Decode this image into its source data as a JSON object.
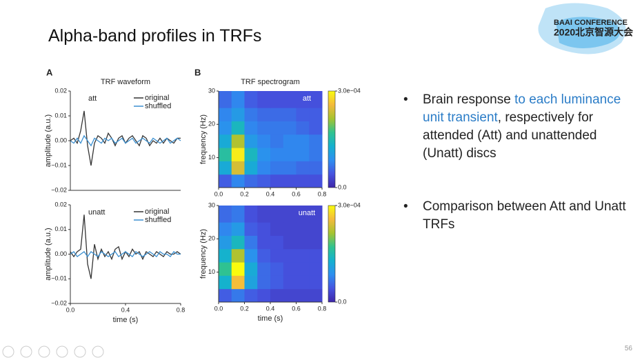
{
  "slide": {
    "title": "Alpha-band profiles in TRFs",
    "logo_top": "BAAI CONFERENCE",
    "logo_bottom": "2020北京智源大会",
    "page": "56",
    "bullets": [
      [
        "Brain response ",
        "to each luminance unit transient",
        ", respectively for attended (Att) and unattended (Unatt)  discs"
      ],
      [
        "Comparison between Att and Unatt TRFs"
      ]
    ]
  },
  "chart_data": [
    {
      "type": "line",
      "panel": "A",
      "title": "TRF waveform",
      "label": "att",
      "ylabel": "amplitude (a.u.)",
      "x": [
        0,
        0.025,
        0.05,
        0.075,
        0.1,
        0.125,
        0.15,
        0.175,
        0.2,
        0.225,
        0.25,
        0.275,
        0.3,
        0.325,
        0.35,
        0.375,
        0.4,
        0.425,
        0.45,
        0.475,
        0.5,
        0.525,
        0.55,
        0.575,
        0.6,
        0.625,
        0.65,
        0.675,
        0.7,
        0.725,
        0.75,
        0.775,
        0.8
      ],
      "xlim": [
        0,
        0.8
      ],
      "ylim": [
        -0.02,
        0.02
      ],
      "yticks": [
        {
          "value": -0.02,
          "label": "−0.02"
        },
        {
          "value": -0.01,
          "label": "−0.01"
        },
        {
          "value": 0,
          "label": "0.00"
        },
        {
          "value": 0.01,
          "label": "0.01"
        },
        {
          "value": 0.02,
          "label": "0.02"
        }
      ],
      "series": [
        {
          "name": "original",
          "color": "#333333",
          "values": [
            0,
            0.001,
            -0.001,
            0.004,
            0.012,
            -0.002,
            -0.01,
            -0.001,
            0.002,
            0.001,
            -0.001,
            0.003,
            0.001,
            -0.002,
            0.001,
            0.002,
            -0.001,
            0.001,
            0.002,
            0,
            -0.002,
            0.002,
            0.001,
            -0.002,
            0,
            -0.001,
            0.001,
            -0.001,
            0.001,
            0,
            -0.001,
            0.001,
            0.001
          ]
        },
        {
          "name": "shuffled",
          "color": "#3a8fd0",
          "values": [
            0,
            -0.001,
            0.001,
            -0.001,
            0.002,
            0,
            -0.002,
            0.001,
            0,
            -0.001,
            0.001,
            0,
            0.001,
            -0.001,
            0,
            0.001,
            -0.001,
            0,
            0.001,
            -0.001,
            0,
            0.001,
            0,
            -0.001,
            0.001,
            0,
            -0.001,
            0,
            0.001,
            -0.001,
            0,
            0.001,
            0
          ]
        }
      ]
    },
    {
      "type": "line",
      "label": "unatt",
      "ylabel": "amplitude (a.u.)",
      "xlabel": "time (s)",
      "x": [
        0,
        0.025,
        0.05,
        0.075,
        0.1,
        0.125,
        0.15,
        0.175,
        0.2,
        0.225,
        0.25,
        0.275,
        0.3,
        0.325,
        0.35,
        0.375,
        0.4,
        0.425,
        0.45,
        0.475,
        0.5,
        0.525,
        0.55,
        0.575,
        0.6,
        0.625,
        0.65,
        0.675,
        0.7,
        0.725,
        0.75,
        0.775,
        0.8
      ],
      "xlim": [
        0,
        0.8
      ],
      "xticks": [
        {
          "value": 0,
          "label": "0.0"
        },
        0.4,
        0.8
      ],
      "ylim": [
        -0.02,
        0.02
      ],
      "yticks": [
        {
          "value": -0.02,
          "label": "−0.02"
        },
        {
          "value": -0.01,
          "label": "−0.01"
        },
        {
          "value": 0,
          "label": "0.00"
        },
        {
          "value": 0.01,
          "label": "0.01"
        },
        {
          "value": 0.02,
          "label": "0.02"
        }
      ],
      "series": [
        {
          "name": "original",
          "color": "#333333",
          "values": [
            0.001,
            -0.001,
            0.001,
            0.002,
            0.016,
            -0.004,
            -0.01,
            0.004,
            -0.002,
            0.002,
            -0.001,
            0.001,
            -0.002,
            0.002,
            0.003,
            -0.002,
            0.001,
            -0.001,
            0.002,
            0,
            0.001,
            -0.002,
            0.001,
            0,
            -0.001,
            0.001,
            0,
            -0.001,
            0.001,
            0,
            0,
            0.001,
            0
          ]
        },
        {
          "name": "shuffled",
          "color": "#3a8fd0",
          "values": [
            0,
            0.001,
            -0.001,
            0,
            0.001,
            -0.001,
            0.001,
            0,
            -0.001,
            0.001,
            0,
            -0.001,
            0,
            0.001,
            -0.001,
            0,
            0.001,
            0,
            -0.001,
            0.001,
            0,
            -0.001,
            0,
            0.001,
            0,
            -0.001,
            0.001,
            0,
            0,
            -0.001,
            0.001,
            0,
            0
          ]
        }
      ]
    },
    {
      "type": "heatmap",
      "panel": "B",
      "title": "TRF spectrogram",
      "label": "att",
      "ylabel": "frequency (Hz)",
      "xbins": [
        0,
        0.1,
        0.2,
        0.3,
        0.4,
        0.5,
        0.6,
        0.7,
        0.8
      ],
      "ybins": [
        1,
        5,
        9,
        13,
        17,
        21,
        25,
        30
      ],
      "xlim": [
        0,
        0.8
      ],
      "ylim": [
        1,
        30
      ],
      "xticks": [
        {
          "value": 0,
          "label": "0.0"
        },
        0.2,
        0.4,
        0.6,
        0.8
      ],
      "yticks": [
        10,
        20,
        30
      ],
      "zlim": [
        0,
        0.0003
      ],
      "zticks": [
        {
          "value": 0.0003,
          "label": "3.0e−04"
        },
        {
          "value": 0,
          "label": "0.0"
        }
      ],
      "colormap": [
        "#3e26a8",
        "#4653e0",
        "#2d8ff0",
        "#14b1cf",
        "#30c38f",
        "#a6c32f",
        "#f4ba3c",
        "#f9fb0e"
      ],
      "values": [
        [
          5e-05,
          8e-05,
          6e-05,
          5e-05,
          4e-05,
          4e-05,
          4e-05,
          4e-05
        ],
        [
          0.00012,
          0.00024,
          0.00012,
          8e-05,
          7e-05,
          7e-05,
          6e-05,
          6e-05
        ],
        [
          0.00016,
          0.00029,
          0.00014,
          9e-05,
          8e-05,
          8e-05,
          8e-05,
          7e-05
        ],
        [
          0.00012,
          0.00022,
          0.0001,
          8e-05,
          7e-05,
          8e-05,
          8e-05,
          7e-05
        ],
        [
          9e-05,
          0.00014,
          8e-05,
          7e-05,
          7e-05,
          7e-05,
          6e-05,
          5e-05
        ],
        [
          8e-05,
          0.0001,
          7e-05,
          6e-05,
          6e-05,
          6e-05,
          5e-05,
          5e-05
        ],
        [
          6e-05,
          8e-05,
          5e-05,
          4e-05,
          4e-05,
          4e-05,
          4e-05,
          4e-05
        ]
      ]
    },
    {
      "type": "heatmap",
      "label": "unatt",
      "ylabel": "frequency (Hz)",
      "xlabel": "time (s)",
      "xbins": [
        0,
        0.1,
        0.2,
        0.3,
        0.4,
        0.5,
        0.6,
        0.7,
        0.8
      ],
      "ybins": [
        1,
        5,
        9,
        13,
        17,
        21,
        25,
        30
      ],
      "xlim": [
        0,
        0.8
      ],
      "ylim": [
        1,
        30
      ],
      "xticks": [
        {
          "value": 0,
          "label": "0.0"
        },
        0.2,
        0.4,
        0.6,
        0.8
      ],
      "yticks": [
        10,
        20,
        30
      ],
      "zlim": [
        0,
        0.0003
      ],
      "zticks": [
        {
          "value": 0.0003,
          "label": "3.0e−04"
        },
        {
          "value": 0,
          "label": "0.0"
        }
      ],
      "colormap": [
        "#3e26a8",
        "#4653e0",
        "#2d8ff0",
        "#14b1cf",
        "#30c38f",
        "#a6c32f",
        "#f4ba3c",
        "#f9fb0e"
      ],
      "values": [
        [
          5e-05,
          7e-05,
          5e-05,
          4e-05,
          3e-05,
          3e-05,
          3e-05,
          3e-05
        ],
        [
          0.00013,
          0.00026,
          0.00011,
          6e-05,
          5e-05,
          4e-05,
          4e-05,
          4e-05
        ],
        [
          0.00017,
          0.0003,
          0.00012,
          6e-05,
          5e-05,
          4e-05,
          4e-05,
          4e-05
        ],
        [
          0.00013,
          0.00022,
          9e-05,
          5e-05,
          4e-05,
          4e-05,
          4e-05,
          4e-05
        ],
        [
          0.0001,
          0.00014,
          7e-05,
          4e-05,
          4e-05,
          3e-05,
          3e-05,
          3e-05
        ],
        [
          8e-05,
          0.0001,
          5e-05,
          4e-05,
          3e-05,
          3e-05,
          3e-05,
          3e-05
        ],
        [
          6e-05,
          7e-05,
          4e-05,
          3e-05,
          3e-05,
          3e-05,
          3e-05,
          3e-05
        ]
      ]
    }
  ]
}
